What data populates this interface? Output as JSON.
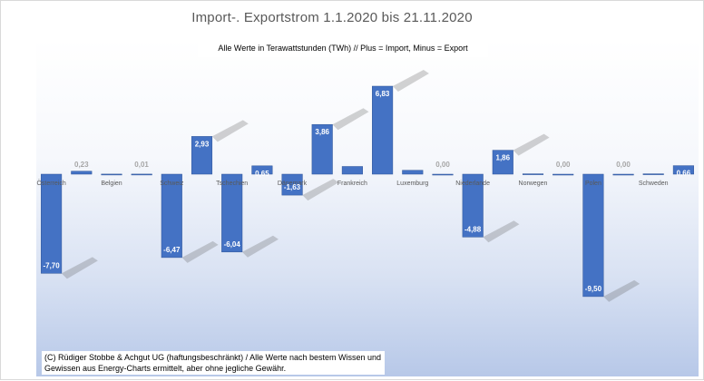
{
  "header": {
    "title": "Import-. Exportstrom 1.1.2020 bis 21.11.2020",
    "subtitle": "Alle Werte in Terawattstunden (TWh) // Plus = Import, Minus = Export"
  },
  "footer": {
    "copyright": "(C) Rüdiger Stobbe & Achgut UG (haftungsbeschränkt) / Alle Werte nach bestem Wissen und Gewissen aus Energy-Charts ermittelt, aber ohne jegliche Gewähr."
  },
  "colors": {
    "bar": "#4472c4",
    "bar_border": "#2f5597",
    "label": "#ffffff",
    "label_dim": "#a6a6a6",
    "category_label": "#595959"
  },
  "chart_data": {
    "type": "bar",
    "title": "Import-. Exportstrom 1.1.2020 bis 21.11.2020",
    "subtitle": "Alle Werte in Terawattstunden (TWh) // Plus = Import, Minus = Export",
    "categories": [
      "Österreich",
      "Österreich",
      "Belgien",
      "Belgien",
      "Schweiz",
      "Schweiz",
      "Tschechien",
      "Tschechien",
      "Dänemark",
      "Dänemark",
      "Frankreich",
      "Frankreich",
      "Luxemburg",
      "Luxemburg",
      "Niederlande",
      "Niederlande",
      "Norwegen",
      "Norwegen",
      "Polen",
      "Polen",
      "Schweden",
      "Schweden"
    ],
    "category_labels_shown": [
      "Österreich",
      "Belgien",
      "Schweiz",
      "Tschechien",
      "Dänemark",
      "Frankreich",
      "Luxemburg",
      "Niederlande",
      "Norwegen",
      "Polen",
      "Schweden"
    ],
    "values": [
      -7.7,
      0.23,
      0.01,
      0.01,
      -6.47,
      2.93,
      -6.04,
      0.65,
      -1.63,
      3.86,
      0.6,
      6.83,
      0.3,
      0.0,
      -4.88,
      1.86,
      0.03,
      0.0,
      -9.5,
      0.0,
      0.03,
      0.66
    ],
    "value_labels": [
      "-7,70",
      "0,23",
      "",
      "0,01",
      "-6,47",
      "2,93",
      "-6,04",
      "0,65",
      "-1,63",
      "3,86",
      "",
      "6,83",
      "",
      "0,00",
      "-4,88",
      "1,86",
      "",
      "0,00",
      "-9,50",
      "0,00",
      "",
      "0,66"
    ],
    "ylim": [
      -10.4,
      8.1
    ],
    "grid": false,
    "legend": "none"
  }
}
